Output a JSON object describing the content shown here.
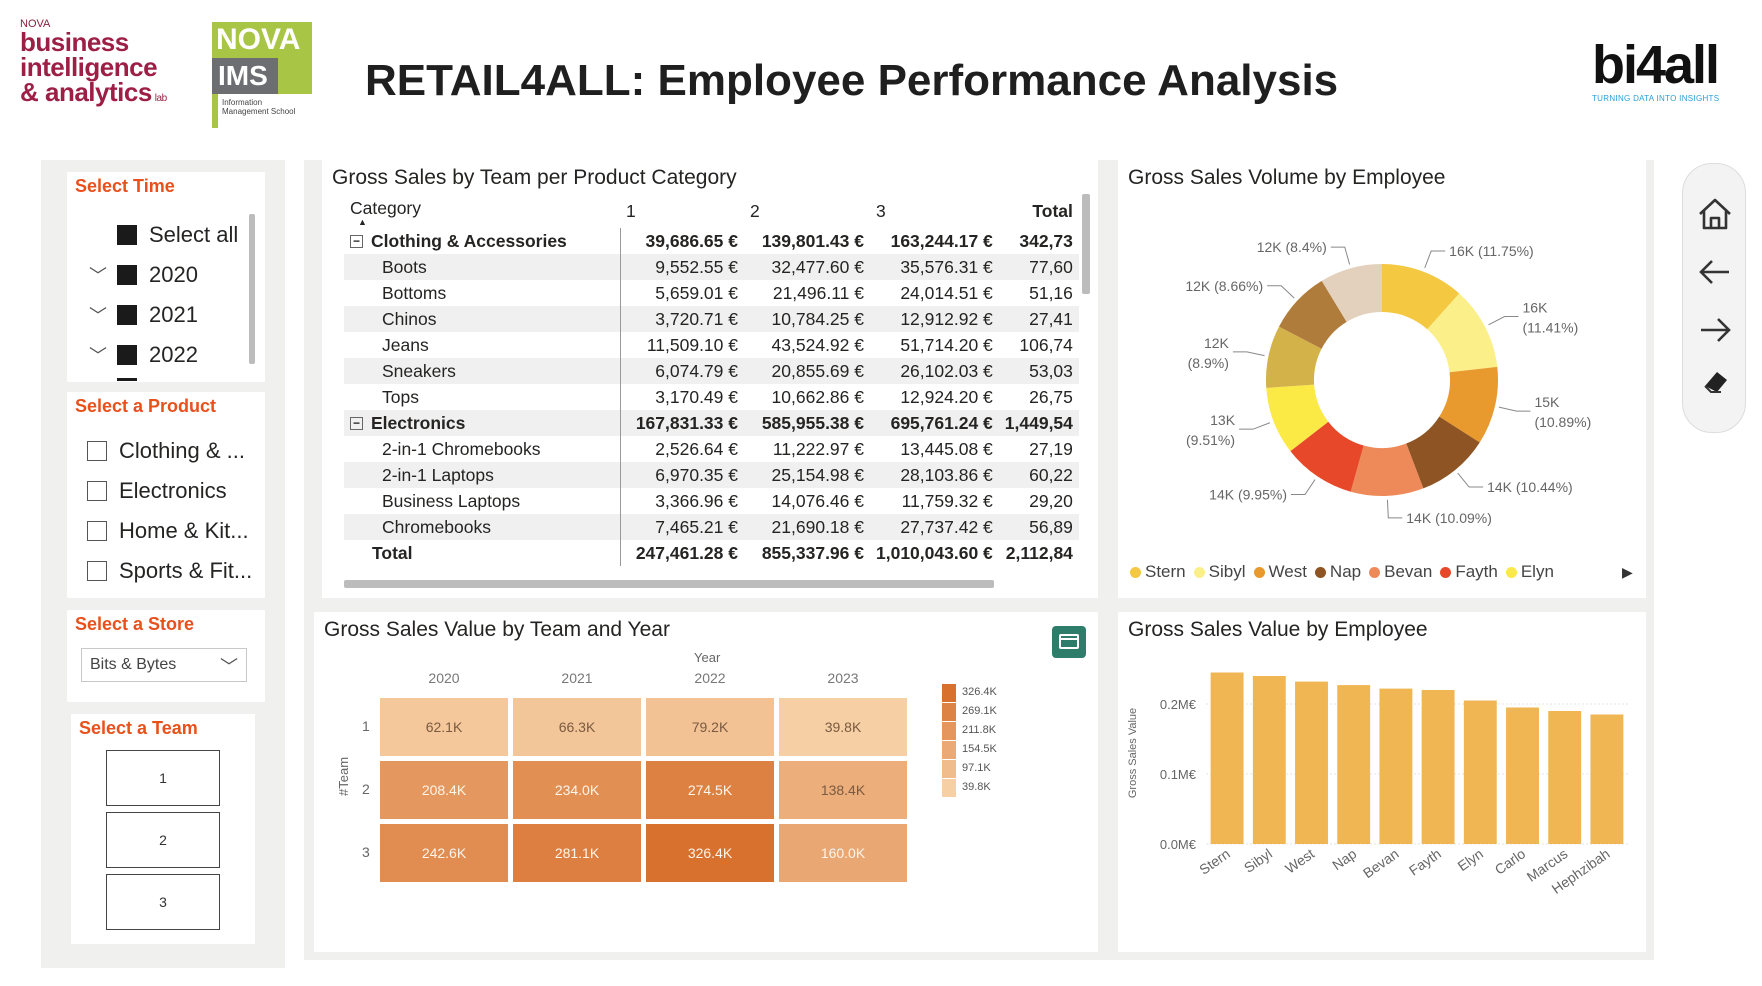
{
  "header": {
    "title": "RETAIL4ALL: Employee Performance Analysis",
    "logo_bia": {
      "line0": "NOVA",
      "line1": "business",
      "line2": "intelligence",
      "line3": "& analytics",
      "suffix": "lab"
    },
    "logo_nova": {
      "top": "NOVA",
      "mid": "IMS",
      "sub": "Information Management School"
    },
    "logo_bi4all": {
      "word": "bi4all",
      "tagline": "TURNING DATA INTO INSIGHTS"
    }
  },
  "slicers": {
    "time": {
      "title": "Select Time",
      "select_all": "Select all",
      "years": [
        "2020",
        "2021",
        "2022"
      ]
    },
    "product": {
      "title": "Select a Product",
      "items": [
        "Clothing & ...",
        "Electronics",
        "Home & Kit...",
        "Sports & Fit..."
      ]
    },
    "store": {
      "title": "Select a Store",
      "value": "Bits & Bytes"
    },
    "team": {
      "title": "Select a Team",
      "buttons": [
        "1",
        "2",
        "3"
      ]
    }
  },
  "matrix": {
    "title": "Gross Sales by Team per Product Category",
    "columns": [
      "Category",
      "1",
      "2",
      "3",
      "Total"
    ],
    "rows": [
      {
        "type": "group",
        "label": "Clothing & Accessories",
        "values": [
          "39,686.65 €",
          "139,801.43 €",
          "163,244.17 €",
          "342,73"
        ]
      },
      {
        "type": "item",
        "label": "Boots",
        "values": [
          "9,552.55 €",
          "32,477.60 €",
          "35,576.31 €",
          "77,60"
        ]
      },
      {
        "type": "item",
        "label": "Bottoms",
        "values": [
          "5,659.01 €",
          "21,496.11 €",
          "24,014.51 €",
          "51,16"
        ]
      },
      {
        "type": "item",
        "label": "Chinos",
        "values": [
          "3,720.71 €",
          "10,784.25 €",
          "12,912.92 €",
          "27,41"
        ]
      },
      {
        "type": "item",
        "label": "Jeans",
        "values": [
          "11,509.10 €",
          "43,524.92 €",
          "51,714.20 €",
          "106,74"
        ]
      },
      {
        "type": "item",
        "label": "Sneakers",
        "values": [
          "6,074.79 €",
          "20,855.69 €",
          "26,102.03 €",
          "53,03"
        ]
      },
      {
        "type": "item",
        "label": "Tops",
        "values": [
          "3,170.49 €",
          "10,662.86 €",
          "12,924.20 €",
          "26,75"
        ]
      },
      {
        "type": "group",
        "label": "Electronics",
        "values": [
          "167,831.33 €",
          "585,955.38 €",
          "695,761.24 €",
          "1,449,54"
        ]
      },
      {
        "type": "item",
        "label": "2-in-1 Chromebooks",
        "values": [
          "2,526.64 €",
          "11,222.97 €",
          "13,445.08 €",
          "27,19"
        ]
      },
      {
        "type": "item",
        "label": "2-in-1 Laptops",
        "values": [
          "6,970.35 €",
          "25,154.98 €",
          "28,103.86 €",
          "60,22"
        ]
      },
      {
        "type": "item",
        "label": "Business Laptops",
        "values": [
          "3,366.96 €",
          "14,076.46 €",
          "11,759.32 €",
          "29,20"
        ]
      },
      {
        "type": "item",
        "label": "Chromebooks",
        "values": [
          "7,465.21 €",
          "21,690.18 €",
          "27,737.42 €",
          "56,89"
        ]
      },
      {
        "type": "total",
        "label": "Total",
        "values": [
          "247,461.28 €",
          "855,337.96 €",
          "1,010,043.60 €",
          "2,112,84"
        ]
      }
    ]
  },
  "donut": {
    "title": "Gross Sales Volume by Employee",
    "slices": [
      {
        "name": "Stern",
        "value": 16,
        "label": "16K (11.75%)",
        "color": "#f5c842"
      },
      {
        "name": "Sibyl",
        "value": 16,
        "label": "16K (11.41%)",
        "color": "#fbef8a"
      },
      {
        "name": "West",
        "value": 15,
        "label": "15K (10.89%)",
        "color": "#e89a2e"
      },
      {
        "name": "Nap",
        "value": 14,
        "label": "14K (10.44%)",
        "color": "#8e5423"
      },
      {
        "name": "Bevan",
        "value": 14,
        "label": "14K (10.09%)",
        "color": "#ee8a5a"
      },
      {
        "name": "Fayth",
        "value": 14,
        "label": "14K (9.95%)",
        "color": "#e8482a"
      },
      {
        "name": "Elyn",
        "value": 13,
        "label": "13K (9.51%)",
        "color": "#fbe946"
      },
      {
        "name": "",
        "value": 12,
        "label": "12K (8.9%)",
        "color": "#d4b24a"
      },
      {
        "name": "",
        "value": 12,
        "label": "12K (8.66%)",
        "color": "#b07c3c"
      },
      {
        "name": "",
        "value": 12,
        "label": "12K (8.4%)",
        "color": "#e3d1bd"
      }
    ],
    "legend": [
      "Stern",
      "Sibyl",
      "West",
      "Nap",
      "Bevan",
      "Fayth",
      "Elyn"
    ]
  },
  "heatmap": {
    "title": "Gross Sales Value by Team and Year",
    "col_axis": "Year",
    "row_axis": "#Team",
    "years": [
      "2020",
      "2021",
      "2022",
      "2023"
    ],
    "teams": [
      "1",
      "2",
      "3"
    ],
    "cells": [
      [
        {
          "v": 62.1,
          "t": "62.1K"
        },
        {
          "v": 66.3,
          "t": "66.3K"
        },
        {
          "v": 79.2,
          "t": "79.2K"
        },
        {
          "v": 39.8,
          "t": "39.8K"
        }
      ],
      [
        {
          "v": 208.4,
          "t": "208.4K"
        },
        {
          "v": 234.0,
          "t": "234.0K"
        },
        {
          "v": 274.5,
          "t": "274.5K"
        },
        {
          "v": 138.4,
          "t": "138.4K"
        }
      ],
      [
        {
          "v": 242.6,
          "t": "242.6K"
        },
        {
          "v": 281.1,
          "t": "281.1K"
        },
        {
          "v": 326.4,
          "t": "326.4K"
        },
        {
          "v": 160.0,
          "t": "160.0K"
        }
      ]
    ],
    "scale": [
      "326.4K",
      "269.1K",
      "211.8K",
      "154.5K",
      "97.1K",
      "39.8K"
    ],
    "color_low": "#f6cfa4",
    "color_high": "#d8702e"
  },
  "chart_data": {
    "type": "bar",
    "title": "Gross Sales Value by Employee",
    "ylabel": "Gross Sales Value",
    "categories": [
      "Stern",
      "Sibyl",
      "West",
      "Nap",
      "Bevan",
      "Fayth",
      "Elyn",
      "Carlo",
      "Marcus",
      "Hephzibah"
    ],
    "values": [
      0.245,
      0.24,
      0.232,
      0.227,
      0.222,
      0.22,
      0.205,
      0.195,
      0.19,
      0.185
    ],
    "yticks": [
      "0.0M€",
      "0.1M€",
      "0.2M€"
    ],
    "ylim": [
      0,
      0.26
    ],
    "color": "#f0b654"
  }
}
